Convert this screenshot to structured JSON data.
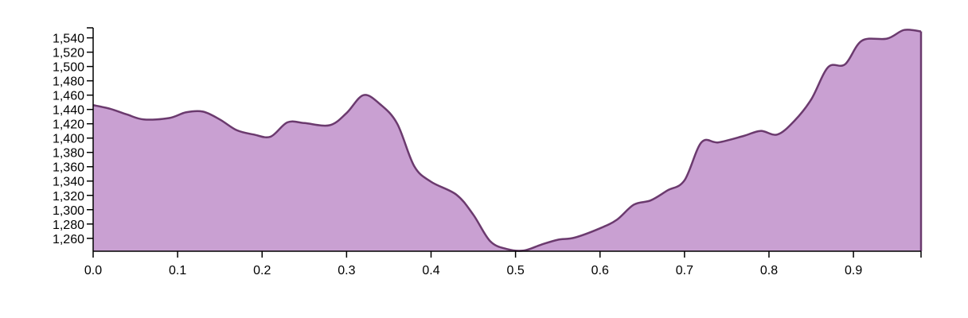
{
  "chart_data": {
    "type": "area",
    "title": "",
    "xlabel": "",
    "ylabel": "",
    "xlim": [
      0,
      0.98
    ],
    "ylim": [
      1242,
      1554
    ],
    "x_ticks": [
      {
        "value": 0.0,
        "label": "0.0"
      },
      {
        "value": 0.1,
        "label": "0.1"
      },
      {
        "value": 0.2,
        "label": "0.2"
      },
      {
        "value": 0.3,
        "label": "0.3"
      },
      {
        "value": 0.4,
        "label": "0.4"
      },
      {
        "value": 0.5,
        "label": "0.5"
      },
      {
        "value": 0.6,
        "label": "0.6"
      },
      {
        "value": 0.7,
        "label": "0.7"
      },
      {
        "value": 0.8,
        "label": "0.8"
      },
      {
        "value": 0.9,
        "label": "0.9"
      }
    ],
    "y_ticks": [
      {
        "value": 1260,
        "label": "1,260"
      },
      {
        "value": 1280,
        "label": "1,280"
      },
      {
        "value": 1300,
        "label": "1,300"
      },
      {
        "value": 1320,
        "label": "1,320"
      },
      {
        "value": 1340,
        "label": "1,340"
      },
      {
        "value": 1360,
        "label": "1,360"
      },
      {
        "value": 1380,
        "label": "1,380"
      },
      {
        "value": 1400,
        "label": "1,400"
      },
      {
        "value": 1420,
        "label": "1,420"
      },
      {
        "value": 1440,
        "label": "1,440"
      },
      {
        "value": 1460,
        "label": "1,460"
      },
      {
        "value": 1480,
        "label": "1,480"
      },
      {
        "value": 1500,
        "label": "1,500"
      },
      {
        "value": 1520,
        "label": "1,520"
      },
      {
        "value": 1540,
        "label": "1,540"
      }
    ],
    "grid": false,
    "colors": {
      "fill": "#c9a0d2",
      "stroke": "#6b3a6e"
    },
    "series": [
      {
        "x": [
          0.0,
          0.02,
          0.04,
          0.06,
          0.09,
          0.11,
          0.13,
          0.15,
          0.17,
          0.19,
          0.21,
          0.23,
          0.25,
          0.28,
          0.3,
          0.32,
          0.34,
          0.36,
          0.38,
          0.4,
          0.43,
          0.45,
          0.47,
          0.49,
          0.51,
          0.53,
          0.55,
          0.57,
          0.6,
          0.62,
          0.64,
          0.66,
          0.68,
          0.7,
          0.72,
          0.74,
          0.77,
          0.79,
          0.81,
          0.83,
          0.85,
          0.87,
          0.89,
          0.91,
          0.94,
          0.96,
          0.98
        ],
        "y": [
          1446,
          1441,
          1433,
          1426,
          1428,
          1436,
          1437,
          1426,
          1411,
          1405,
          1402,
          1422,
          1421,
          1418,
          1435,
          1460,
          1447,
          1420,
          1361,
          1339,
          1321,
          1293,
          1256,
          1245,
          1243,
          1251,
          1258,
          1261,
          1274,
          1286,
          1307,
          1313,
          1327,
          1341,
          1394,
          1394,
          1403,
          1410,
          1405,
          1424,
          1454,
          1499,
          1503,
          1536,
          1539,
          1551,
          1549
        ]
      }
    ]
  }
}
